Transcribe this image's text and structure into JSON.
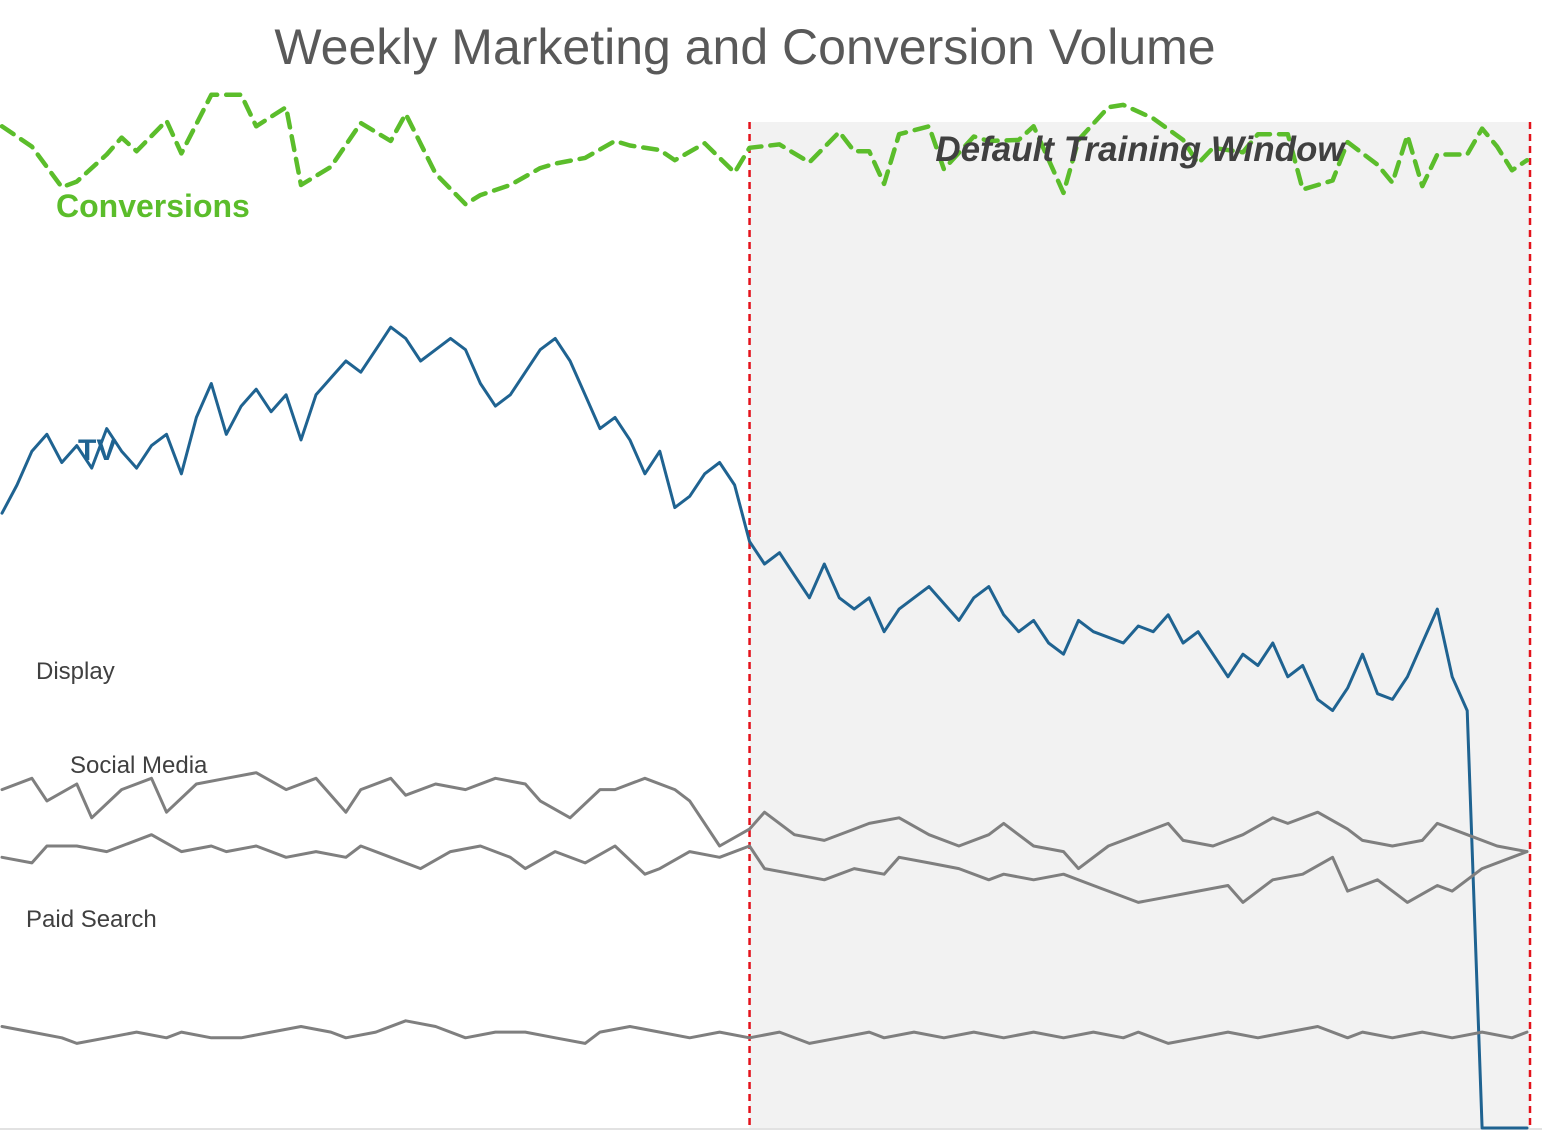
{
  "title": "Weekly Marketing and Conversion Volume",
  "window_label": "Default Training Window",
  "colors": {
    "conversions": "#5bbd2b",
    "tv": "#1f6391",
    "channel": "#7f7f7f",
    "window_fill": "#f2f2f2",
    "window_border": "#e3121b",
    "title": "#595959"
  },
  "chart_data": {
    "type": "line",
    "title": "Weekly Marketing and Conversion Volume",
    "xlabel": "",
    "ylabel": "",
    "axes_visible": false,
    "grid": false,
    "legend": "none (series labels placed inline)",
    "x_unit": "week index (unlabeled)",
    "ylim": [
      0,
      1000
    ],
    "window": {
      "label": "Default Training Window",
      "start": 50,
      "end": 102
    },
    "series": [
      {
        "name": "Conversions",
        "style": "dashed",
        "x": [
          0,
          2,
          4,
          5,
          7,
          8,
          9,
          11,
          12,
          14,
          16,
          17,
          19,
          20,
          22,
          24,
          26,
          27,
          29,
          31,
          32,
          34,
          36,
          37,
          39,
          41,
          42,
          44,
          45,
          47,
          49,
          50,
          52,
          54,
          56,
          57,
          58,
          59,
          60,
          62,
          63,
          65,
          66,
          68,
          69,
          71,
          72,
          74,
          75,
          77,
          79,
          80,
          81,
          83,
          84,
          86,
          87,
          89,
          90,
          92,
          93,
          94,
          95,
          96,
          98,
          99,
          100,
          101,
          102
        ],
        "values": [
          888,
          870,
          834,
          839,
          863,
          878,
          866,
          893,
          864,
          916,
          916,
          888,
          905,
          836,
          852,
          891,
          875,
          899,
          846,
          819,
          827,
          836,
          851,
          855,
          860,
          875,
          871,
          867,
          858,
          873,
          847,
          869,
          872,
          856,
          883,
          866,
          866,
          837,
          881,
          888,
          850,
          879,
          875,
          876,
          888,
          829,
          876,
          905,
          907,
          895,
          876,
          855,
          869,
          865,
          881,
          881,
          832,
          840,
          874,
          854,
          838,
          880,
          835,
          863,
          863,
          886,
          870,
          849,
          858
        ]
      },
      {
        "name": "TV",
        "style": "solid",
        "x": [
          0,
          1,
          2,
          3,
          4,
          5,
          6,
          7,
          8,
          9,
          10,
          11,
          12,
          13,
          14,
          15,
          16,
          17,
          18,
          19,
          20,
          21,
          22,
          23,
          24,
          25,
          26,
          27,
          28,
          29,
          30,
          31,
          32,
          33,
          34,
          35,
          36,
          37,
          38,
          39,
          40,
          41,
          42,
          43,
          44,
          45,
          46,
          47,
          48,
          49,
          50,
          51,
          52,
          53,
          54,
          55,
          56,
          57,
          58,
          59,
          60,
          61,
          62,
          63,
          64,
          65,
          66,
          67,
          68,
          69,
          70,
          71,
          72,
          73,
          74,
          75,
          76,
          77,
          78,
          79,
          80,
          81,
          82,
          83,
          84,
          85,
          86,
          87,
          88,
          89,
          90,
          91,
          92,
          93,
          94,
          95,
          96,
          97,
          98,
          99,
          100,
          101,
          102
        ],
        "values": [
          545,
          570,
          600,
          615,
          590,
          605,
          585,
          620,
          600,
          585,
          605,
          615,
          580,
          630,
          660,
          615,
          640,
          655,
          635,
          650,
          610,
          650,
          665,
          680,
          670,
          690,
          710,
          700,
          680,
          690,
          700,
          690,
          660,
          640,
          650,
          670,
          690,
          700,
          680,
          650,
          620,
          630,
          610,
          580,
          600,
          550,
          560,
          580,
          590,
          570,
          520,
          500,
          510,
          490,
          470,
          500,
          470,
          460,
          470,
          440,
          460,
          470,
          480,
          465,
          450,
          470,
          480,
          455,
          440,
          450,
          430,
          420,
          450,
          440,
          435,
          430,
          445,
          440,
          455,
          430,
          440,
          420,
          400,
          420,
          410,
          430,
          400,
          410,
          380,
          370,
          390,
          420,
          385,
          380,
          400,
          430,
          460,
          400,
          370,
          0,
          0,
          0,
          0
        ]
      },
      {
        "name": "Display",
        "style": "solid",
        "x": [
          0,
          2,
          3,
          5,
          6,
          8,
          10,
          11,
          13,
          15,
          17,
          19,
          21,
          23,
          24,
          26,
          27,
          29,
          31,
          33,
          35,
          36,
          38,
          40,
          41,
          43,
          45,
          46,
          48,
          50,
          51,
          53,
          55,
          57,
          58,
          60,
          62,
          64,
          66,
          67,
          69,
          71,
          72,
          74,
          76,
          78,
          79,
          81,
          83,
          85,
          86,
          88,
          90,
          91,
          93,
          95,
          96,
          98,
          100,
          102
        ],
        "values": [
          300,
          310,
          290,
          305,
          275,
          300,
          310,
          280,
          305,
          310,
          315,
          300,
          310,
          280,
          300,
          310,
          295,
          305,
          300,
          310,
          305,
          290,
          275,
          300,
          300,
          310,
          300,
          290,
          250,
          265,
          280,
          260,
          255,
          265,
          270,
          275,
          260,
          250,
          260,
          270,
          250,
          245,
          230,
          250,
          260,
          270,
          255,
          250,
          260,
          275,
          270,
          280,
          265,
          255,
          250,
          255,
          270,
          260,
          250,
          245
        ]
      },
      {
        "name": "Social Media",
        "style": "solid",
        "x": [
          0,
          2,
          3,
          5,
          7,
          8,
          10,
          12,
          14,
          15,
          17,
          19,
          21,
          23,
          24,
          26,
          28,
          30,
          32,
          34,
          35,
          37,
          39,
          41,
          43,
          44,
          46,
          48,
          50,
          51,
          53,
          55,
          57,
          59,
          60,
          62,
          64,
          66,
          67,
          69,
          71,
          73,
          74,
          76,
          78,
          80,
          82,
          83,
          85,
          87,
          89,
          90,
          92,
          94,
          96,
          97,
          99,
          101,
          102
        ],
        "values": [
          240,
          235,
          250,
          250,
          245,
          250,
          260,
          245,
          250,
          245,
          250,
          240,
          245,
          240,
          250,
          240,
          230,
          245,
          250,
          240,
          230,
          245,
          235,
          250,
          225,
          230,
          245,
          240,
          250,
          230,
          225,
          220,
          230,
          225,
          240,
          235,
          230,
          220,
          225,
          220,
          225,
          215,
          210,
          200,
          205,
          210,
          215,
          200,
          220,
          225,
          240,
          210,
          220,
          200,
          215,
          210,
          230,
          240,
          245
        ]
      },
      {
        "name": "Paid Search",
        "style": "solid",
        "x": [
          0,
          2,
          4,
          5,
          7,
          9,
          11,
          12,
          14,
          16,
          18,
          20,
          22,
          23,
          25,
          27,
          29,
          31,
          33,
          35,
          37,
          39,
          40,
          42,
          44,
          46,
          48,
          50,
          52,
          54,
          56,
          58,
          59,
          61,
          63,
          65,
          67,
          69,
          71,
          73,
          75,
          76,
          78,
          80,
          82,
          84,
          86,
          88,
          90,
          91,
          93,
          95,
          97,
          99,
          101,
          102
        ],
        "values": [
          90,
          85,
          80,
          75,
          80,
          85,
          80,
          85,
          80,
          80,
          85,
          90,
          85,
          80,
          85,
          95,
          90,
          80,
          85,
          85,
          80,
          75,
          85,
          90,
          85,
          80,
          85,
          80,
          85,
          75,
          80,
          85,
          80,
          85,
          80,
          85,
          80,
          85,
          80,
          85,
          80,
          85,
          75,
          80,
          85,
          80,
          85,
          90,
          80,
          85,
          80,
          85,
          80,
          85,
          80,
          85
        ]
      }
    ]
  }
}
